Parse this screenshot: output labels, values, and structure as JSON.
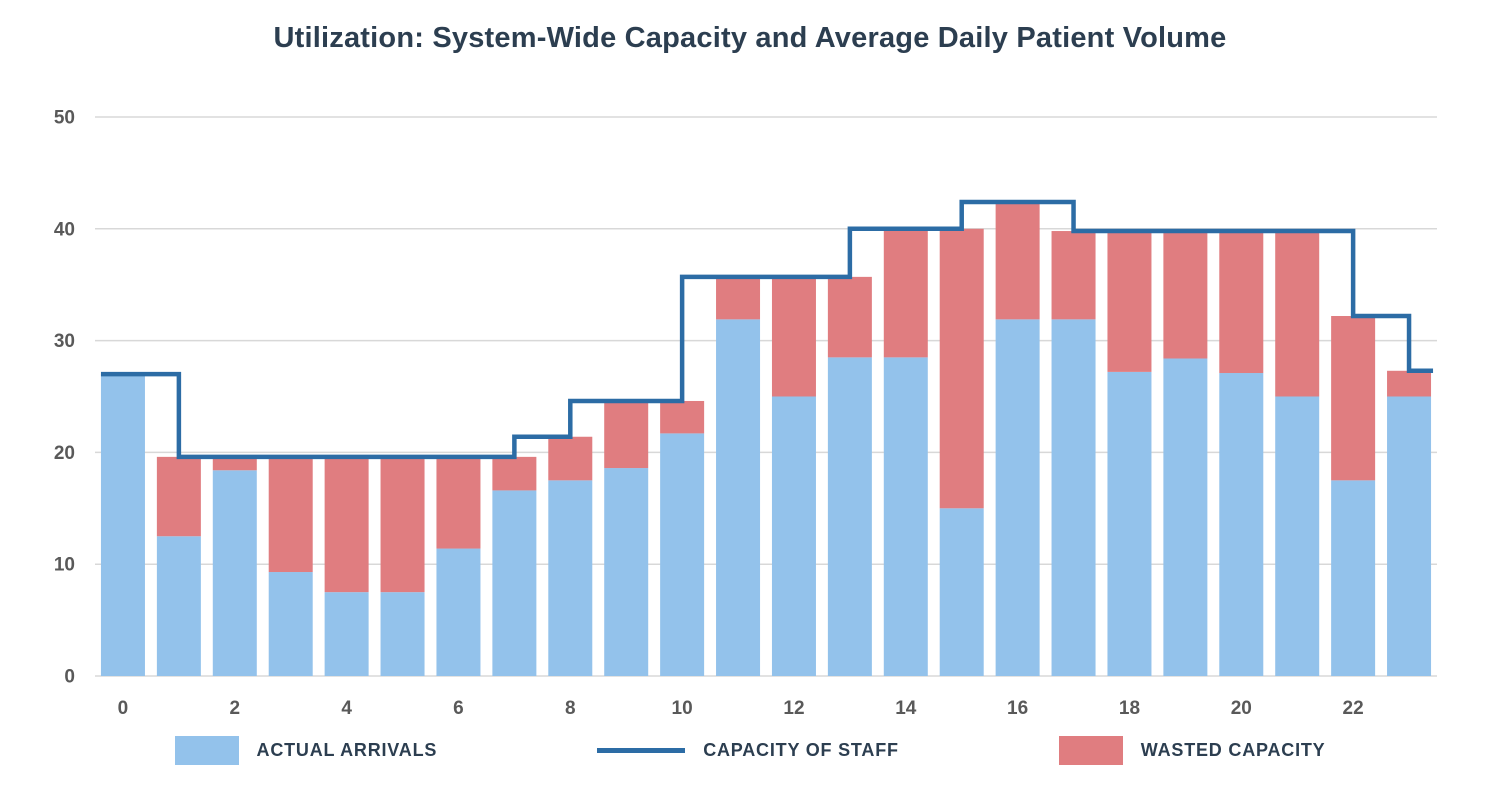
{
  "page_title": "Utilization: System-Wide Capacity and Average Daily Patient Volume",
  "colors": {
    "background": "#FFFFFF",
    "title_text": "#2C3E50",
    "tick_label": "#595959",
    "gridline": "#D8D8D8",
    "actual_arrivals": "#93C2EB",
    "wasted_capacity": "#E07D80",
    "capacity_line": "#2C6CA5",
    "legend_text": "#2C3E50"
  },
  "chart_data": {
    "type": "bar",
    "subtype": "stacked-bars-with-step-line-overlay",
    "title": "Utilization: System-Wide Capacity and Average Daily Patient Volume",
    "xlabel": "",
    "ylabel": "",
    "x": [
      0,
      1,
      2,
      3,
      4,
      5,
      6,
      7,
      8,
      9,
      10,
      11,
      12,
      13,
      14,
      15,
      16,
      17,
      18,
      19,
      20,
      21,
      22,
      23
    ],
    "x_tick_labels": [
      0,
      2,
      4,
      6,
      8,
      10,
      12,
      14,
      16,
      18,
      20,
      22
    ],
    "ylim": [
      0,
      50
    ],
    "y_ticks": [
      0,
      10,
      20,
      30,
      40,
      50
    ],
    "grid": true,
    "legend_position": "bottom",
    "series": [
      {
        "name": "ACTUAL ARRIVALS",
        "type": "bar",
        "color": "#93C2EB",
        "values": [
          27,
          12.5,
          18.4,
          9.3,
          7.5,
          7.5,
          11.4,
          16.6,
          17.5,
          18.6,
          21.7,
          31.9,
          25,
          28.5,
          28.5,
          15,
          31.9,
          31.9,
          27.2,
          28.4,
          27.1,
          25,
          17.5,
          25
        ]
      },
      {
        "name": "WASTED CAPACITY",
        "type": "bar-stacked-on-actual",
        "color": "#E07D80",
        "values": [
          0,
          7.1,
          1.2,
          10.3,
          12.1,
          12.1,
          8.2,
          3.0,
          3.9,
          6.0,
          2.9,
          3.8,
          10.7,
          7.2,
          11.5,
          25.0,
          10.5,
          7.9,
          12.6,
          11.4,
          12.7,
          14.8,
          14.7,
          2.3
        ]
      },
      {
        "name": "CAPACITY OF STAFF",
        "type": "step-line",
        "color": "#2C6CA5",
        "values": [
          27,
          19.6,
          19.6,
          19.6,
          19.6,
          19.6,
          19.6,
          21.4,
          24.6,
          24.6,
          35.7,
          35.7,
          35.7,
          40,
          40,
          42.4,
          42.4,
          39.8,
          39.8,
          39.8,
          39.8,
          39.8,
          32.2,
          27.3
        ]
      }
    ],
    "legend": [
      {
        "label": "ACTUAL ARRIVALS",
        "swatch": "rect",
        "color": "#93C2EB"
      },
      {
        "label": "CAPACITY OF STAFF",
        "swatch": "line",
        "color": "#2C6CA5"
      },
      {
        "label": "WASTED CAPACITY",
        "swatch": "rect",
        "color": "#E07D80"
      }
    ]
  }
}
